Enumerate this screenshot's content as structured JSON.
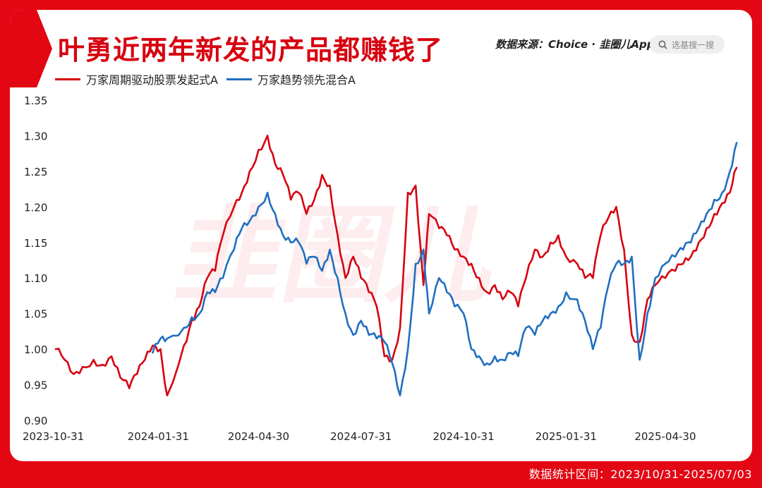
{
  "header": {
    "title": "叶勇近两年新发的产品都赚钱了",
    "source": "数据来源：Choice · 韭圈儿App",
    "search_placeholder": "选基搜一搜"
  },
  "footer": {
    "range_text": "数据统计区间：2023/10/31-2025/07/03"
  },
  "watermark": "韭圈儿",
  "colors": {
    "background": "#e30613",
    "series1": "#d7000f",
    "series2": "#1f6fc0"
  },
  "chart_data": {
    "type": "line",
    "title": "叶勇近两年新发的产品都赚钱了",
    "x_ticks": [
      "2023-10-31",
      "2024-01-31",
      "2024-04-30",
      "2024-07-31",
      "2024-10-31",
      "2025-01-31",
      "2025-04-30"
    ],
    "y_ticks": [
      "1.35",
      "1.30",
      "1.25",
      "1.20",
      "1.15",
      "1.10",
      "1.05",
      "1.00",
      "0.95",
      "0.90"
    ],
    "ylim": [
      0.9,
      1.35
    ],
    "xlim": [
      "2023-10-31",
      "2025-07-03"
    ],
    "grid": false,
    "legend_position": "top-left",
    "series": [
      {
        "name": "万家周期驱动股票发起式A",
        "color": "#d7000f",
        "x": [
          "2023-10-31",
          "2023-11-08",
          "2023-11-16",
          "2023-11-24",
          "2023-12-04",
          "2023-12-12",
          "2023-12-20",
          "2023-12-28",
          "2024-01-05",
          "2024-01-12",
          "2024-01-19",
          "2024-01-26",
          "2024-02-02",
          "2024-02-08",
          "2024-02-23",
          "2024-03-01",
          "2024-03-08",
          "2024-03-15",
          "2024-03-22",
          "2024-03-29",
          "2024-04-08",
          "2024-04-15",
          "2024-04-22",
          "2024-04-30",
          "2024-05-08",
          "2024-05-15",
          "2024-05-22",
          "2024-05-29",
          "2024-06-05",
          "2024-06-12",
          "2024-06-19",
          "2024-06-26",
          "2024-07-03",
          "2024-07-10",
          "2024-07-17",
          "2024-07-24",
          "2024-07-31",
          "2024-08-07",
          "2024-08-14",
          "2024-08-21",
          "2024-08-28",
          "2024-09-04",
          "2024-09-11",
          "2024-09-18",
          "2024-09-25",
          "2024-09-30",
          "2024-10-09",
          "2024-10-16",
          "2024-10-23",
          "2024-10-31",
          "2024-11-07",
          "2024-11-14",
          "2024-11-21",
          "2024-11-28",
          "2024-12-05",
          "2024-12-12",
          "2024-12-19",
          "2024-12-26",
          "2025-01-03",
          "2025-01-10",
          "2025-01-17",
          "2025-01-24",
          "2025-01-31",
          "2025-02-10",
          "2025-02-17",
          "2025-02-24",
          "2025-03-03",
          "2025-03-10",
          "2025-03-17",
          "2025-03-24",
          "2025-03-31",
          "2025-04-07",
          "2025-04-14",
          "2025-04-21",
          "2025-04-30",
          "2025-05-09",
          "2025-05-16",
          "2025-05-23",
          "2025-05-30",
          "2025-06-06",
          "2025-06-13",
          "2025-06-20",
          "2025-06-27",
          "2025-07-03"
        ],
        "values": [
          1.0,
          0.985,
          0.965,
          0.975,
          0.985,
          0.978,
          0.99,
          0.96,
          0.945,
          0.965,
          0.985,
          1.005,
          1.0,
          0.935,
          1.005,
          1.04,
          1.06,
          1.1,
          1.11,
          1.16,
          1.2,
          1.22,
          1.25,
          1.28,
          1.3,
          1.26,
          1.245,
          1.21,
          1.22,
          1.19,
          1.21,
          1.245,
          1.23,
          1.16,
          1.1,
          1.13,
          1.1,
          1.08,
          1.06,
          0.99,
          0.985,
          1.03,
          1.22,
          1.23,
          1.09,
          1.19,
          1.17,
          1.16,
          1.14,
          1.13,
          1.12,
          1.1,
          1.08,
          1.09,
          1.07,
          1.08,
          1.06,
          1.1,
          1.14,
          1.13,
          1.15,
          1.16,
          1.13,
          1.12,
          1.1,
          1.1,
          1.16,
          1.185,
          1.2,
          1.14,
          1.02,
          1.01,
          1.07,
          1.09,
          1.1,
          1.11,
          1.12,
          1.13,
          1.15,
          1.17,
          1.19,
          1.205,
          1.22,
          1.255
        ]
      },
      {
        "name": "万家趋势领先混合A",
        "color": "#1f6fc0",
        "x": [
          "2024-01-26",
          "2024-02-02",
          "2024-02-08",
          "2024-02-23",
          "2024-03-01",
          "2024-03-08",
          "2024-03-15",
          "2024-03-22",
          "2024-03-29",
          "2024-04-08",
          "2024-04-15",
          "2024-04-22",
          "2024-04-30",
          "2024-05-08",
          "2024-05-15",
          "2024-05-22",
          "2024-05-29",
          "2024-06-05",
          "2024-06-12",
          "2024-06-19",
          "2024-06-26",
          "2024-07-03",
          "2024-07-10",
          "2024-07-17",
          "2024-07-24",
          "2024-07-31",
          "2024-08-07",
          "2024-08-14",
          "2024-08-21",
          "2024-08-28",
          "2024-09-04",
          "2024-09-11",
          "2024-09-18",
          "2024-09-25",
          "2024-09-30",
          "2024-10-09",
          "2024-10-16",
          "2024-10-23",
          "2024-10-31",
          "2024-11-07",
          "2024-11-14",
          "2024-11-21",
          "2024-11-28",
          "2024-12-05",
          "2024-12-12",
          "2024-12-19",
          "2024-12-26",
          "2025-01-03",
          "2025-01-10",
          "2025-01-17",
          "2025-01-24",
          "2025-01-31",
          "2025-02-10",
          "2025-02-17",
          "2025-02-24",
          "2025-03-03",
          "2025-03-10",
          "2025-03-17",
          "2025-03-24",
          "2025-03-31",
          "2025-04-07",
          "2025-04-14",
          "2025-04-21",
          "2025-04-30",
          "2025-05-09",
          "2025-05-16",
          "2025-05-23",
          "2025-05-30",
          "2025-06-06",
          "2025-06-13",
          "2025-06-20",
          "2025-06-27",
          "2025-07-03"
        ],
        "values": [
          0.995,
          1.015,
          1.015,
          1.03,
          1.045,
          1.05,
          1.08,
          1.08,
          1.1,
          1.14,
          1.17,
          1.18,
          1.2,
          1.22,
          1.19,
          1.16,
          1.15,
          1.15,
          1.12,
          1.13,
          1.11,
          1.14,
          1.1,
          1.05,
          1.02,
          1.04,
          1.02,
          1.015,
          1.01,
          0.98,
          0.935,
          1.0,
          1.12,
          1.14,
          1.05,
          1.1,
          1.08,
          1.06,
          1.05,
          1.0,
          0.99,
          0.98,
          0.99,
          0.985,
          0.995,
          0.99,
          1.03,
          1.02,
          1.04,
          1.05,
          1.06,
          1.08,
          1.07,
          1.04,
          1.0,
          1.03,
          1.09,
          1.12,
          1.12,
          1.13,
          0.985,
          1.05,
          1.1,
          1.12,
          1.13,
          1.14,
          1.15,
          1.17,
          1.19,
          1.21,
          1.22,
          1.25,
          1.29
        ]
      }
    ]
  }
}
